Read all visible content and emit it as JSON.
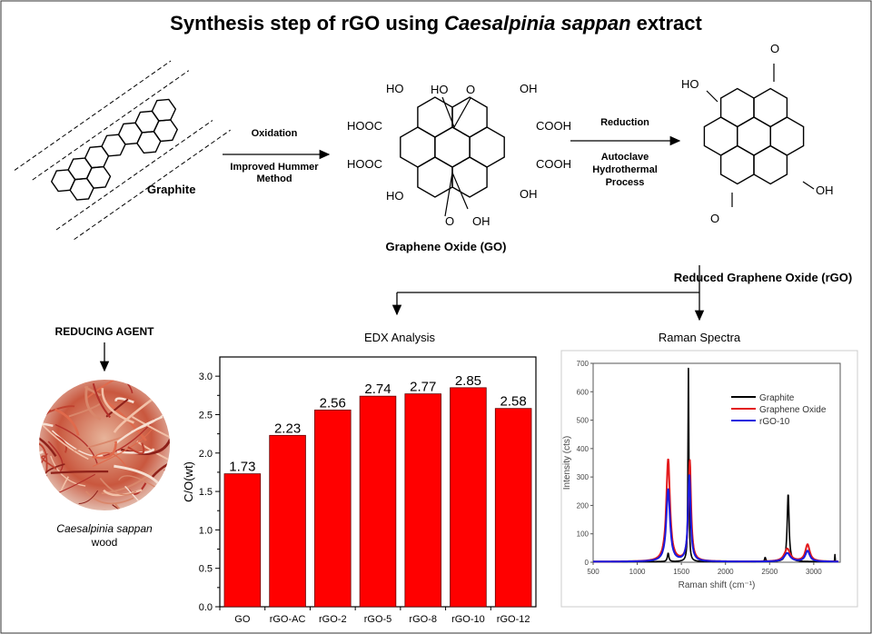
{
  "title": {
    "prefix": "Synthesis step of rGO using ",
    "italic": "Caesalpinia sappan",
    "suffix": " extract"
  },
  "steps": {
    "graphite_label": "Graphite",
    "oxidation": "Oxidation",
    "oxidation_method": [
      "Improved Hummer",
      "Method"
    ],
    "go_label": "Graphene Oxide (GO)",
    "reduction": "Reduction",
    "reduction_method": [
      "Autoclave",
      "Hydrothermal",
      "Process"
    ],
    "rgo_label": "Reduced Graphene Oxide (rGO)"
  },
  "go_groups": [
    "HO",
    "O",
    "HO",
    "OH",
    "HOOC",
    "COOH",
    "HOOC",
    "COOH",
    "HO",
    "OH",
    "O",
    "OH"
  ],
  "rgo_groups": [
    "HO",
    "O",
    "O",
    "OH"
  ],
  "reducing_agent": {
    "label": "REDUCING AGENT",
    "name": "Caesalpinia sappan",
    "sub": "wood"
  },
  "colors": {
    "bar": "#ff0000",
    "graphite": "#000000",
    "go": "#e31a1c",
    "rgo": "#1a1adf"
  },
  "chart_data": [
    {
      "type": "bar",
      "title": "EDX Analysis",
      "categories": [
        "GO",
        "rGO-AC",
        "rGO-2",
        "rGO-5",
        "rGO-8",
        "rGO-10",
        "rGO-12"
      ],
      "values": [
        1.73,
        2.23,
        2.56,
        2.74,
        2.77,
        2.85,
        2.58
      ],
      "labels": [
        "1.73",
        "2.23",
        "2.56",
        "2.74",
        "2.77",
        "2.85",
        "2.58"
      ],
      "ylabel": "C/O(wt)",
      "xlabel": "",
      "ylim": [
        0,
        3.25
      ],
      "yticks": [
        "0.0",
        "0.5",
        "1.0",
        "1.5",
        "2.0",
        "2.5",
        "3.0"
      ]
    },
    {
      "type": "line",
      "title": "Raman Spectra",
      "xlabel": "Raman shift (cm⁻¹)",
      "ylabel": "Intensity (cts)",
      "xlim": [
        500,
        3300
      ],
      "ylim": [
        0,
        700
      ],
      "xticks": [
        "500",
        "1000",
        "1500",
        "2000",
        "2500",
        "3000"
      ],
      "yticks": [
        "0",
        "100",
        "200",
        "300",
        "400",
        "500",
        "600",
        "700"
      ],
      "legend": "top-right",
      "series": [
        {
          "name": "Graphite",
          "peaks": [
            [
              1350,
              30,
              20
            ],
            [
              1580,
              680,
              12
            ],
            [
              2450,
              15,
              15
            ],
            [
              2710,
              240,
              25
            ],
            [
              3240,
              25,
              5
            ]
          ]
        },
        {
          "name": "Graphene Oxide",
          "peaks": [
            [
              1350,
              360,
              50
            ],
            [
              1595,
              355,
              35
            ],
            [
              2700,
              45,
              80
            ],
            [
              2930,
              60,
              60
            ]
          ]
        },
        {
          "name": "rGO-10",
          "peaks": [
            [
              1350,
              255,
              50
            ],
            [
              1590,
              305,
              35
            ],
            [
              2700,
              30,
              80
            ],
            [
              2930,
              38,
              60
            ]
          ]
        }
      ]
    }
  ]
}
